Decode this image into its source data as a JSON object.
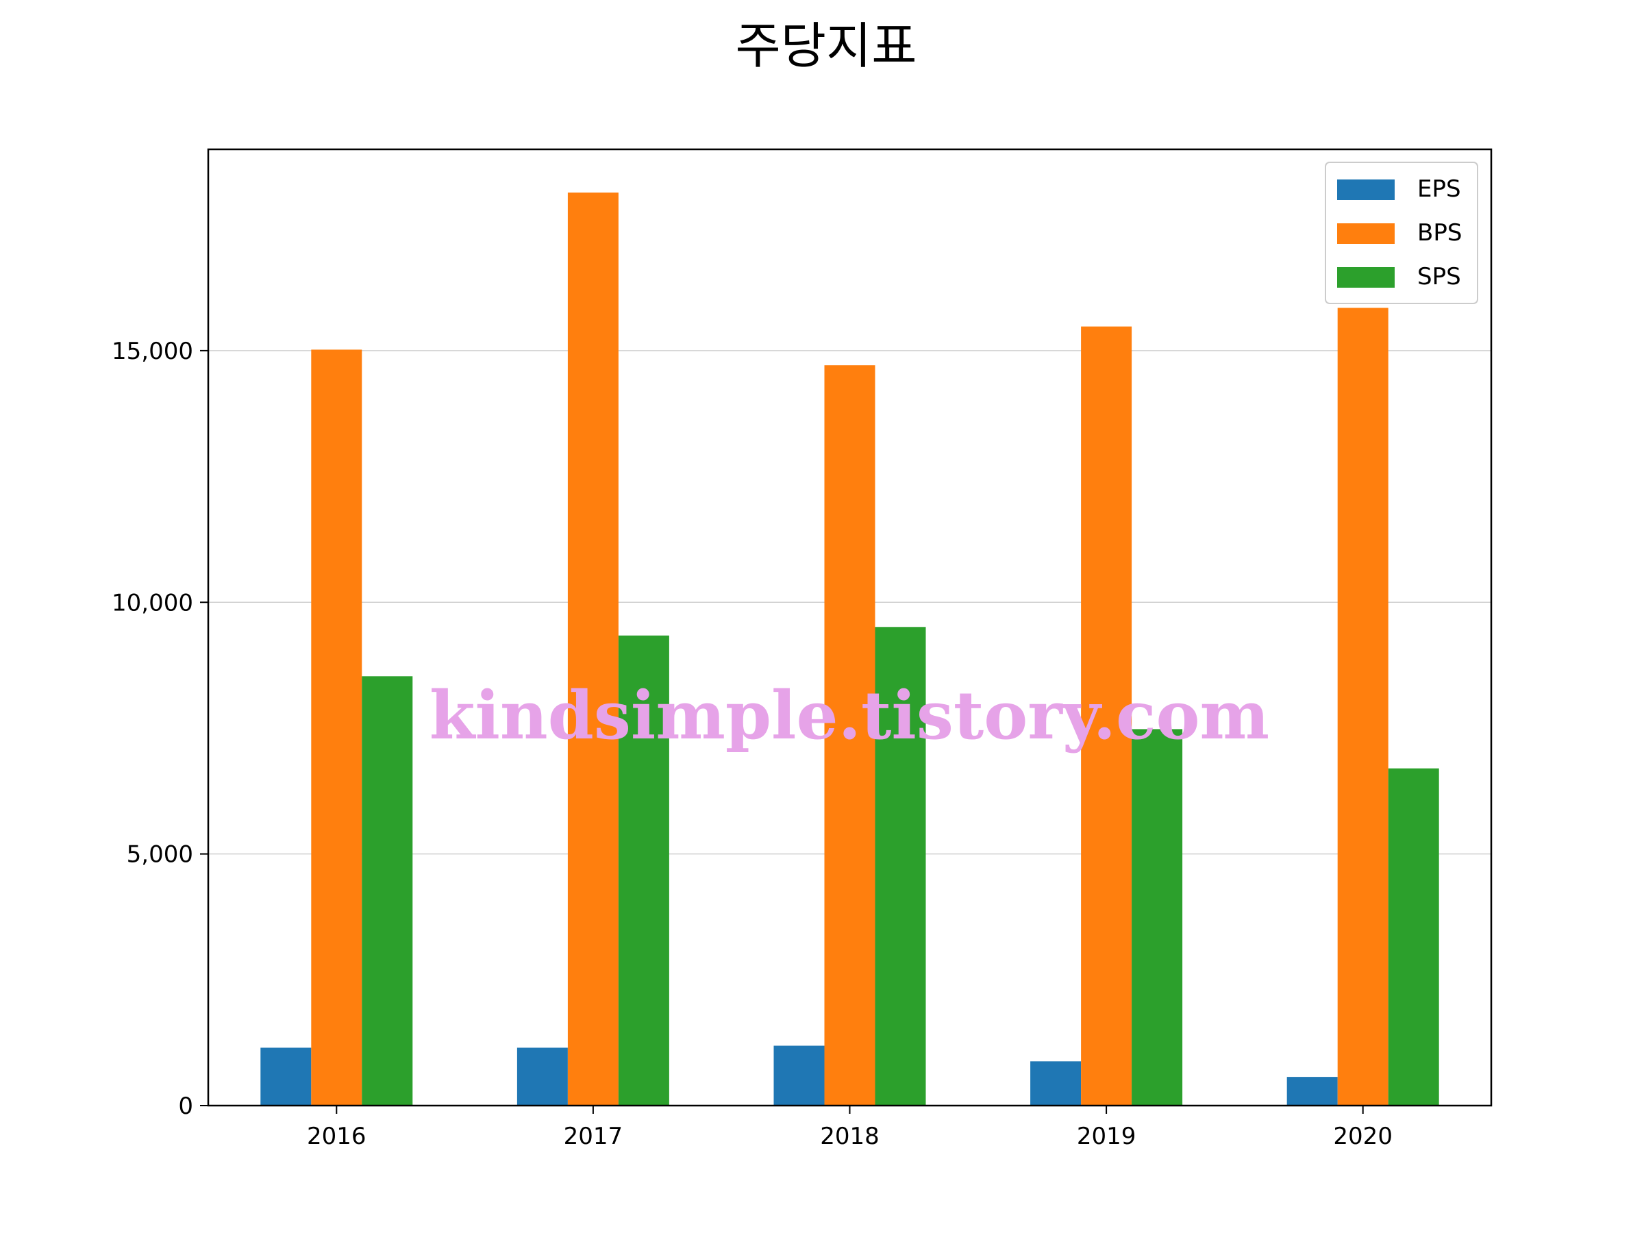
{
  "chart_data": {
    "type": "bar",
    "title": "주당지표",
    "categories": [
      "2016",
      "2017",
      "2018",
      "2019",
      "2020"
    ],
    "series": [
      {
        "name": "EPS",
        "color": "#1f77b4",
        "values": [
          1150,
          1150,
          1190,
          880,
          570
        ]
      },
      {
        "name": "BPS",
        "color": "#ff7f0e",
        "values": [
          15020,
          18140,
          14710,
          15480,
          15850
        ]
      },
      {
        "name": "SPS",
        "color": "#2ca02c",
        "values": [
          8530,
          9340,
          9510,
          7480,
          6700
        ]
      }
    ],
    "yticks": [
      0,
      5000,
      10000,
      15000
    ],
    "ytick_labels": [
      "0",
      "5,000",
      "10,000",
      "15,000"
    ],
    "ylim": [
      0,
      19000
    ],
    "grid": "horizontal",
    "legend": "top-right"
  },
  "watermark": "kindsimple.tistory.com"
}
